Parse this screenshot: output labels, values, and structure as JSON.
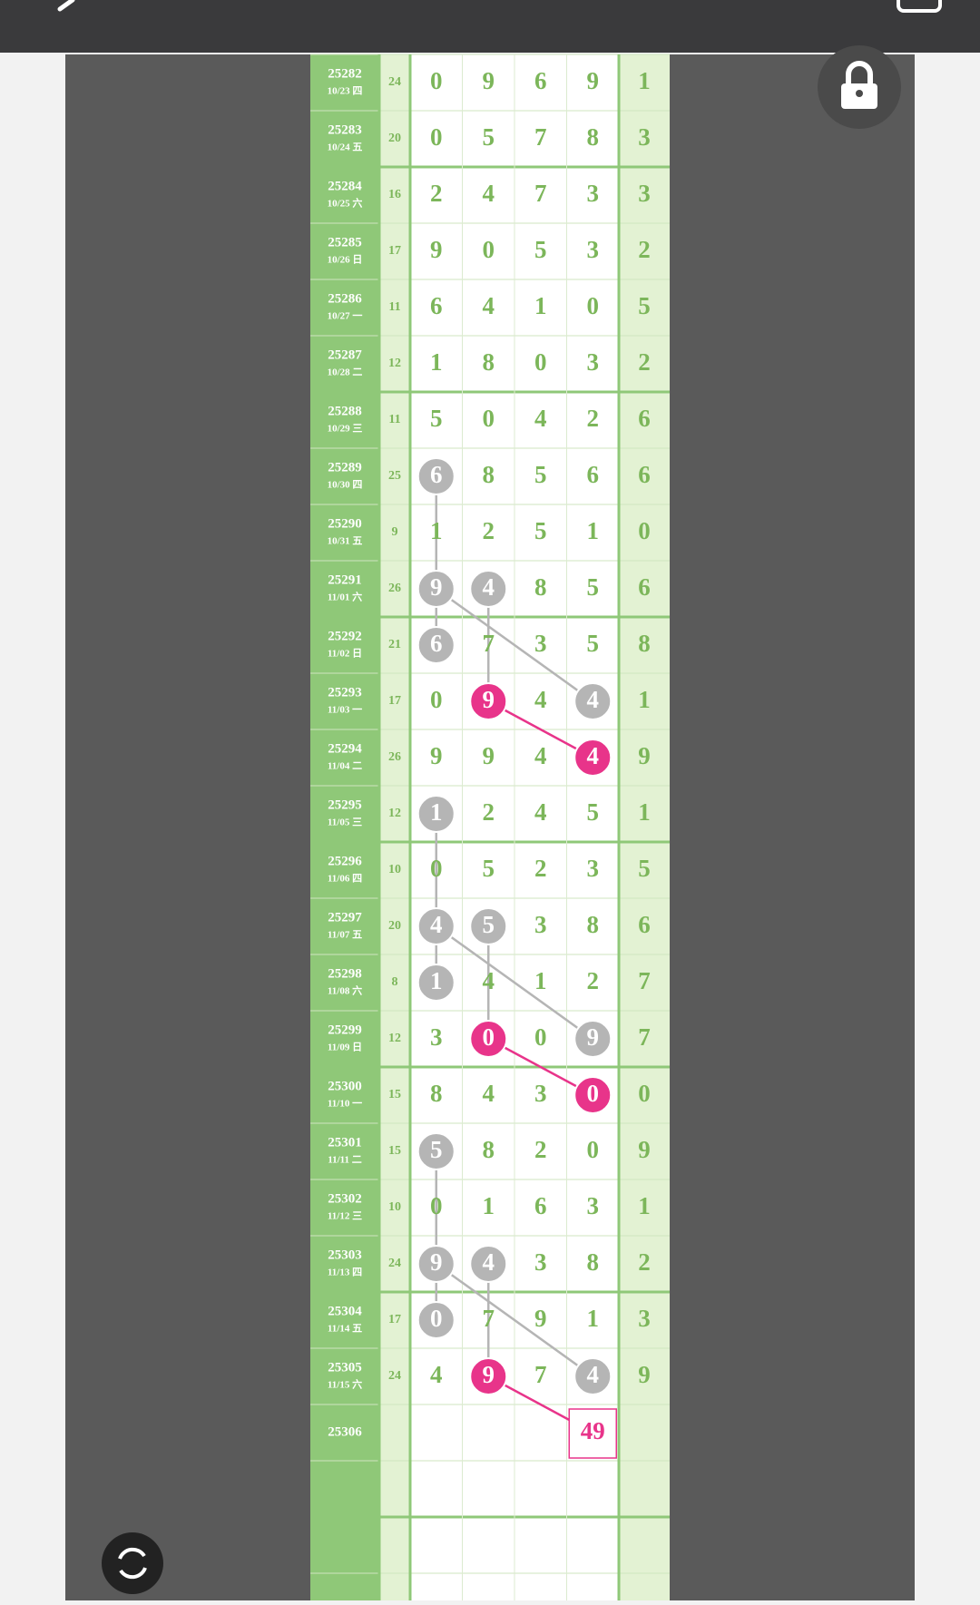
{
  "rows": [
    {
      "issue": "25282",
      "date": "10/23 四",
      "sum": "24",
      "digits": [
        "0",
        "9",
        "6",
        "9"
      ],
      "last": "1"
    },
    {
      "issue": "25283",
      "date": "10/24 五",
      "sum": "20",
      "digits": [
        "0",
        "5",
        "7",
        "8"
      ],
      "last": "3"
    },
    {
      "issue": "25284",
      "date": "10/25 六",
      "sum": "16",
      "digits": [
        "2",
        "4",
        "7",
        "3"
      ],
      "last": "3"
    },
    {
      "issue": "25285",
      "date": "10/26 日",
      "sum": "17",
      "digits": [
        "9",
        "0",
        "5",
        "3"
      ],
      "last": "2"
    },
    {
      "issue": "25286",
      "date": "10/27 一",
      "sum": "11",
      "digits": [
        "6",
        "4",
        "1",
        "0"
      ],
      "last": "5"
    },
    {
      "issue": "25287",
      "date": "10/28 二",
      "sum": "12",
      "digits": [
        "1",
        "8",
        "0",
        "3"
      ],
      "last": "2"
    },
    {
      "issue": "25288",
      "date": "10/29 三",
      "sum": "11",
      "digits": [
        "5",
        "0",
        "4",
        "2"
      ],
      "last": "6"
    },
    {
      "issue": "25289",
      "date": "10/30 四",
      "sum": "25",
      "digits": [
        "6",
        "8",
        "5",
        "6"
      ],
      "last": "6",
      "gray": [
        0
      ]
    },
    {
      "issue": "25290",
      "date": "10/31 五",
      "sum": "9",
      "digits": [
        "1",
        "2",
        "5",
        "1"
      ],
      "last": "0"
    },
    {
      "issue": "25291",
      "date": "11/01 六",
      "sum": "26",
      "digits": [
        "9",
        "4",
        "8",
        "5"
      ],
      "last": "6",
      "gray": [
        0,
        1
      ]
    },
    {
      "issue": "25292",
      "date": "11/02 日",
      "sum": "21",
      "digits": [
        "6",
        "7",
        "3",
        "5"
      ],
      "last": "8",
      "gray": [
        0
      ]
    },
    {
      "issue": "25293",
      "date": "11/03 一",
      "sum": "17",
      "digits": [
        "0",
        "9",
        "4",
        "4"
      ],
      "last": "1",
      "gray": [
        3
      ],
      "pink": [
        1
      ]
    },
    {
      "issue": "25294",
      "date": "11/04 二",
      "sum": "26",
      "digits": [
        "9",
        "9",
        "4",
        "4"
      ],
      "last": "9",
      "pink": [
        3
      ]
    },
    {
      "issue": "25295",
      "date": "11/05 三",
      "sum": "12",
      "digits": [
        "1",
        "2",
        "4",
        "5"
      ],
      "last": "1",
      "gray": [
        0
      ]
    },
    {
      "issue": "25296",
      "date": "11/06 四",
      "sum": "10",
      "digits": [
        "0",
        "5",
        "2",
        "3"
      ],
      "last": "5"
    },
    {
      "issue": "25297",
      "date": "11/07 五",
      "sum": "20",
      "digits": [
        "4",
        "5",
        "3",
        "8"
      ],
      "last": "6",
      "gray": [
        0,
        1
      ]
    },
    {
      "issue": "25298",
      "date": "11/08 六",
      "sum": "8",
      "digits": [
        "1",
        "4",
        "1",
        "2"
      ],
      "last": "7",
      "gray": [
        0
      ]
    },
    {
      "issue": "25299",
      "date": "11/09 日",
      "sum": "12",
      "digits": [
        "3",
        "0",
        "0",
        "9"
      ],
      "last": "7",
      "gray": [
        3
      ],
      "pink": [
        1
      ]
    },
    {
      "issue": "25300",
      "date": "11/10 一",
      "sum": "15",
      "digits": [
        "8",
        "4",
        "3",
        "0"
      ],
      "last": "0",
      "pink": [
        3
      ]
    },
    {
      "issue": "25301",
      "date": "11/11 二",
      "sum": "15",
      "digits": [
        "5",
        "8",
        "2",
        "0"
      ],
      "last": "9",
      "gray": [
        0
      ]
    },
    {
      "issue": "25302",
      "date": "11/12 三",
      "sum": "10",
      "digits": [
        "0",
        "1",
        "6",
        "3"
      ],
      "last": "1"
    },
    {
      "issue": "25303",
      "date": "11/13 四",
      "sum": "24",
      "digits": [
        "9",
        "4",
        "3",
        "8"
      ],
      "last": "2",
      "gray": [
        0,
        1
      ]
    },
    {
      "issue": "25304",
      "date": "11/14 五",
      "sum": "17",
      "digits": [
        "0",
        "7",
        "9",
        "1"
      ],
      "last": "3",
      "gray": [
        0
      ]
    },
    {
      "issue": "25305",
      "date": "11/15 六",
      "sum": "24",
      "digits": [
        "4",
        "9",
        "7",
        "4"
      ],
      "last": "9",
      "gray": [
        3
      ],
      "pink": [
        1
      ]
    }
  ],
  "prediction": {
    "issue": "25306",
    "value": "49"
  }
}
